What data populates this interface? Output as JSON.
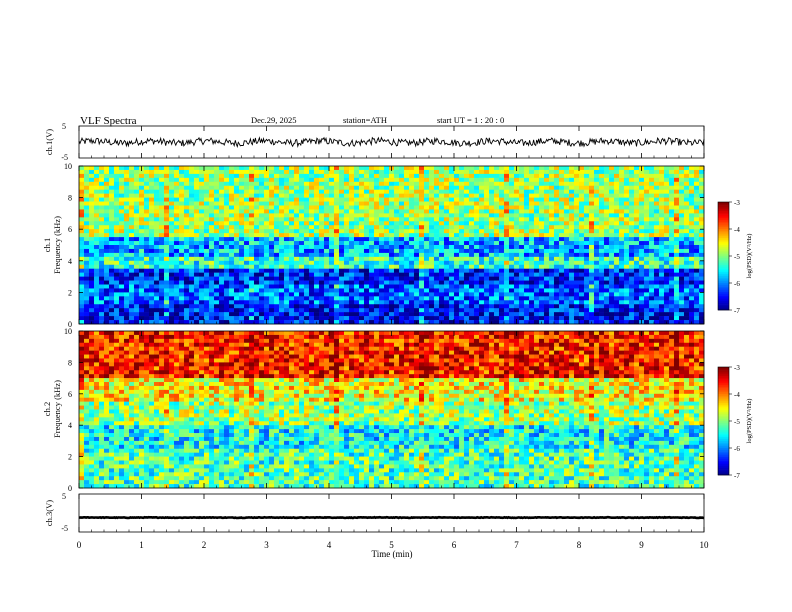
{
  "header": {
    "title": "VLF  Spectra",
    "date": "Dec.29, 2025",
    "station": "station=ATH",
    "start": "start  UT  =   1 : 20 : 0"
  },
  "chart_data": [
    {
      "type": "line",
      "name": "ch1-waveform",
      "ylabel": "ch.1(V)",
      "ylim": [
        -5,
        5
      ],
      "yticks": [
        "5",
        "-5"
      ],
      "xlim": [
        0,
        10
      ],
      "baseline": 0
    },
    {
      "type": "heatmap",
      "name": "ch1-spectrogram",
      "ylabel": "ch.1",
      "ylabel2": "Frequency  (kHz)",
      "ylim": [
        0,
        10
      ],
      "yticks": [
        "0",
        "2",
        "4",
        "6",
        "8",
        "10"
      ],
      "xlim": [
        0,
        10
      ],
      "colorbar": {
        "label": "log(PSD)(V²/Hz)",
        "range": [
          -7,
          -3
        ],
        "ticks": [
          "-3",
          "-4",
          "-5",
          "-6",
          "-7"
        ]
      },
      "bands_khz": [
        {
          "from": 0.0,
          "to": 1.2,
          "level": -6.5
        },
        {
          "from": 1.2,
          "to": 2.6,
          "level": -6.1
        },
        {
          "from": 2.6,
          "to": 3.6,
          "level": -6.4
        },
        {
          "from": 3.6,
          "to": 4.2,
          "level": -5.3
        },
        {
          "from": 4.2,
          "to": 5.6,
          "level": -5.8
        },
        {
          "from": 5.6,
          "to": 10.0,
          "level": -4.9
        }
      ]
    },
    {
      "type": "heatmap",
      "name": "ch2-spectrogram",
      "ylabel": "ch.2",
      "ylabel2": "Frequency  (kHz)",
      "ylim": [
        0,
        10
      ],
      "yticks": [
        "0",
        "2",
        "4",
        "6",
        "8",
        "10"
      ],
      "xlim": [
        0,
        10
      ],
      "colorbar": {
        "label": "log(PSD)(V²/Hz)",
        "range": [
          -7,
          -3
        ],
        "ticks": [
          "-3",
          "-4",
          "-5",
          "-6",
          "-7"
        ]
      },
      "bands_khz": [
        {
          "from": 0.0,
          "to": 2.5,
          "level": -5.2
        },
        {
          "from": 2.5,
          "to": 4.0,
          "level": -5.5
        },
        {
          "from": 4.0,
          "to": 5.5,
          "level": -4.9
        },
        {
          "from": 5.5,
          "to": 7.0,
          "level": -4.5
        },
        {
          "from": 7.0,
          "to": 10.0,
          "level": -3.6
        }
      ]
    },
    {
      "type": "line",
      "name": "ch3-waveform",
      "ylabel": "ch.3(V)",
      "ylim": [
        -5,
        5
      ],
      "yticks": [
        "5",
        "-5"
      ],
      "xlim": [
        0,
        10
      ],
      "baseline": -1.2
    }
  ],
  "xaxis": {
    "label": "Time  (min)",
    "ticks": [
      "0",
      "1",
      "2",
      "3",
      "4",
      "5",
      "6",
      "7",
      "8",
      "9",
      "10"
    ]
  }
}
